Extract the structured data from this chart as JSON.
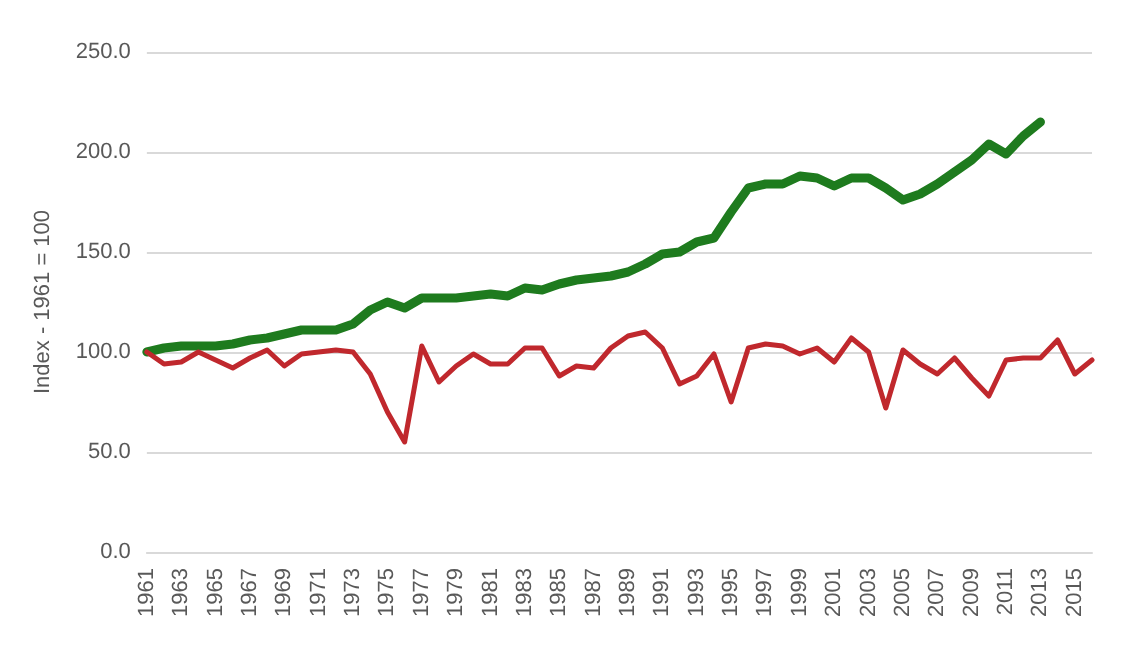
{
  "chart_data": {
    "type": "line",
    "ylabel": "Index - 1961 = 100",
    "categories": [
      "1961",
      null,
      "1963",
      null,
      "1965",
      null,
      "1967",
      null,
      "1969",
      null,
      "1971",
      null,
      "1973",
      null,
      "1975",
      null,
      "1977",
      null,
      "1979",
      null,
      "1981",
      null,
      "1983",
      null,
      "1985",
      null,
      "1987",
      null,
      "1989",
      null,
      "1991",
      null,
      "1993",
      null,
      "1995",
      null,
      "1997",
      null,
      "1999",
      null,
      "2001",
      null,
      "2003",
      null,
      "2005",
      null,
      "2007",
      null,
      "2009",
      null,
      "2011",
      null,
      "2013",
      null,
      "2015",
      null
    ],
    "series": [
      {
        "color": "#1e7b1e",
        "values": [
          100,
          102,
          103,
          103,
          103,
          104,
          106,
          107,
          109,
          111,
          111,
          111,
          114,
          121,
          125,
          122,
          127,
          127,
          127,
          128,
          129,
          128,
          132,
          131,
          134,
          136,
          137,
          138,
          140,
          144,
          149,
          150,
          155,
          157,
          170,
          182,
          184,
          184,
          188,
          187,
          183,
          187,
          187,
          182,
          176,
          179,
          184,
          190,
          196,
          204,
          199,
          208,
          215,
          null,
          null,
          null
        ]
      },
      {
        "color": "#c0282d",
        "values": [
          100,
          94,
          95,
          100,
          96,
          92,
          97,
          101,
          93,
          99,
          100,
          101,
          100,
          89,
          70,
          55,
          103,
          85,
          93,
          99,
          94,
          94,
          102,
          102,
          88,
          93,
          92,
          102,
          108,
          110,
          102,
          84,
          88,
          99,
          75,
          102,
          104,
          103,
          99,
          102,
          95,
          107,
          100,
          72,
          101,
          94,
          89,
          97,
          87,
          78,
          96,
          97,
          97,
          106,
          89,
          96
        ]
      }
    ],
    "ylim": [
      0,
      250
    ],
    "yticks": [
      {
        "value": 0,
        "label": "0.0"
      },
      {
        "value": 50,
        "label": "50.0"
      },
      {
        "value": 100,
        "label": "100.0"
      },
      {
        "value": 150,
        "label": "150.0"
      },
      {
        "value": 200,
        "label": "200.0"
      },
      {
        "value": 250,
        "label": "250.0"
      }
    ],
    "grid": "y",
    "marker": "none",
    "line_style": "solid"
  }
}
